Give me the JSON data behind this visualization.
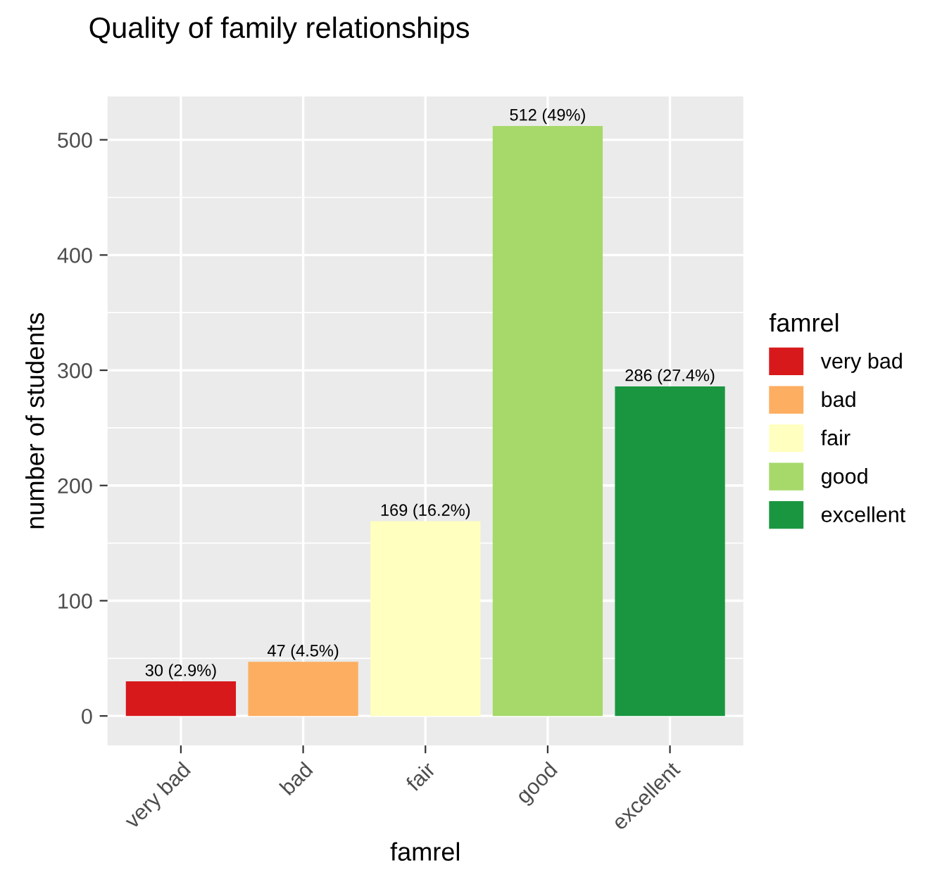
{
  "chart_data": {
    "type": "bar",
    "title": "Quality of family relationships",
    "xlabel": "famrel",
    "ylabel": "number of students",
    "legend_title": "famrel",
    "categories": [
      "very bad",
      "bad",
      "fair",
      "good",
      "excellent"
    ],
    "series": [
      {
        "name": "very bad",
        "color": "#d7191c",
        "values": [
          30,
          null,
          null,
          null,
          null
        ],
        "value_labels": [
          "30 (2.9%)",
          null,
          null,
          null,
          null
        ]
      },
      {
        "name": "bad",
        "color": "#fdae61",
        "values": [
          null,
          47,
          null,
          null,
          null
        ],
        "value_labels": [
          null,
          "47 (4.5%)",
          null,
          null,
          null
        ]
      },
      {
        "name": "fair",
        "color": "#ffffbf",
        "values": [
          null,
          null,
          169,
          null,
          null
        ],
        "value_labels": [
          null,
          null,
          "169 (16.2%)",
          null,
          null
        ]
      },
      {
        "name": "good",
        "color": "#a6d96a",
        "values": [
          null,
          null,
          null,
          512,
          null
        ],
        "value_labels": [
          null,
          null,
          null,
          "512 (49%)",
          null
        ]
      },
      {
        "name": "excellent",
        "color": "#1a9641",
        "values": [
          null,
          null,
          null,
          null,
          286
        ],
        "value_labels": [
          null,
          null,
          null,
          null,
          "286 (27.4%)"
        ]
      }
    ],
    "ylim": [
      -25.6,
      537.6
    ],
    "yticks": [
      0,
      100,
      200,
      300,
      400,
      500
    ],
    "grid": true,
    "legend": "right"
  }
}
